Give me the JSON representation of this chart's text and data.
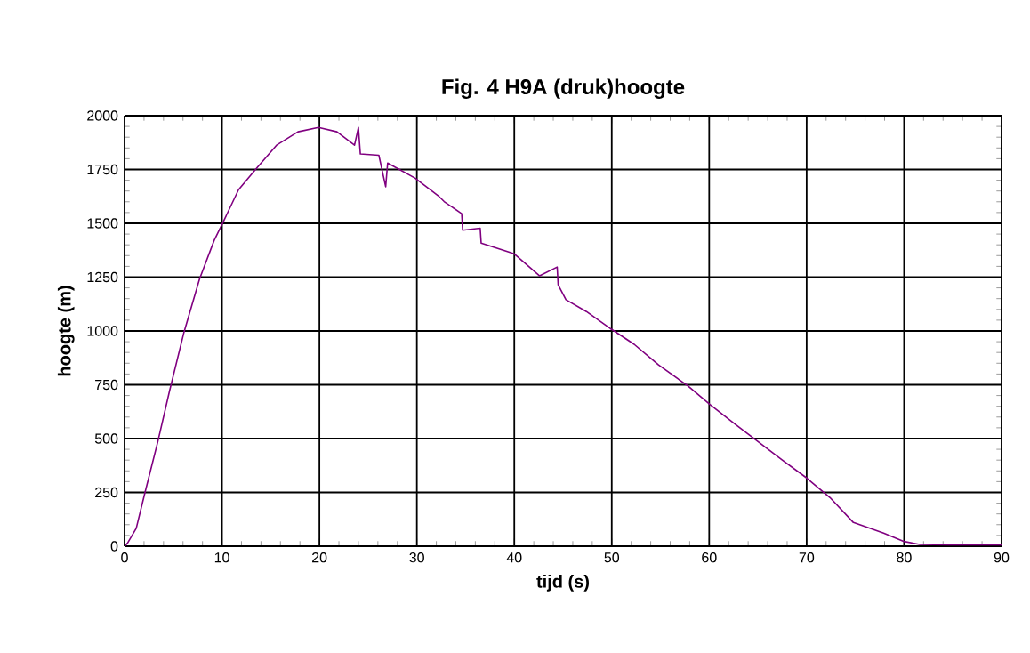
{
  "chart_data": {
    "type": "line",
    "title": "Fig. 4   H9A (druk)hoogte",
    "xlabel": "tijd (s)",
    "ylabel": "hoogte (m)",
    "xlim": [
      0,
      90
    ],
    "ylim": [
      0,
      2000
    ],
    "xticks": [
      0,
      10,
      20,
      30,
      40,
      50,
      60,
      70,
      80,
      90
    ],
    "yticks": [
      0,
      250,
      500,
      750,
      1000,
      1250,
      1500,
      1750,
      2000
    ],
    "grid": true,
    "marker": "none",
    "line_style": "solid",
    "series": [
      {
        "color": "#800080",
        "x": [
          0,
          0.3,
          1.2,
          2.1,
          3.4,
          4.6,
          6.1,
          7.7,
          9.2,
          10.1,
          11.7,
          13.5,
          15.6,
          17.8,
          19.9,
          21.8,
          23.6,
          24.0,
          24.2,
          26.1,
          26.8,
          27.0,
          29.8,
          32.2,
          32.8,
          34.6,
          34.7,
          36.5,
          36.6,
          40,
          42.6,
          44.4,
          44.5,
          45.3,
          47.4,
          50,
          52.3,
          54.1,
          54.8,
          57.8,
          60.1,
          62.7,
          65.1,
          67.5,
          70,
          72.4,
          74.8,
          77.9,
          80,
          81.6,
          84.6,
          90
        ],
        "values": [
          0,
          14,
          83,
          250,
          483,
          718,
          994,
          1242,
          1421,
          1504,
          1656,
          1753,
          1863,
          1925,
          1945,
          1925,
          1863,
          1945,
          1822,
          1816,
          1670,
          1780,
          1710,
          1628,
          1601,
          1545,
          1468,
          1477,
          1408,
          1358,
          1256,
          1297,
          1214,
          1145,
          1090,
          1007,
          938,
          869,
          842,
          745,
          657,
          566,
          483,
          400,
          317,
          226,
          110,
          61,
          22,
          8,
          6,
          6
        ]
      }
    ]
  }
}
